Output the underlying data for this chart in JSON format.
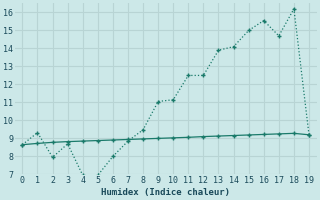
{
  "line1_x": [
    0,
    1,
    2,
    3,
    4,
    5,
    6,
    7,
    8,
    9,
    10,
    11,
    12,
    13,
    14,
    15,
    16,
    17,
    18,
    19
  ],
  "line1_y": [
    8.65,
    9.32,
    7.95,
    8.7,
    6.95,
    6.95,
    8.0,
    8.85,
    9.48,
    11.05,
    11.15,
    12.5,
    12.5,
    13.9,
    14.1,
    15.0,
    15.55,
    14.7,
    16.2,
    9.2
  ],
  "line2_x": [
    0,
    1,
    2,
    3,
    4,
    5,
    6,
    7,
    8,
    9,
    10,
    11,
    12,
    13,
    14,
    15,
    16,
    17,
    18,
    19
  ],
  "line2_y": [
    8.65,
    8.72,
    8.78,
    8.82,
    8.85,
    8.88,
    8.91,
    8.94,
    8.97,
    9.0,
    9.03,
    9.06,
    9.1,
    9.13,
    9.16,
    9.19,
    9.22,
    9.25,
    9.28,
    9.2
  ],
  "line_color": "#1a7a6a",
  "bg_color": "#cce8e8",
  "grid_color": "#b8d4d4",
  "xlabel": "Humidex (Indice chaleur)",
  "ylim": [
    7,
    16.5
  ],
  "xlim": [
    -0.5,
    19.5
  ],
  "yticks": [
    7,
    8,
    9,
    10,
    11,
    12,
    13,
    14,
    15,
    16
  ],
  "xticks": [
    0,
    1,
    2,
    3,
    4,
    5,
    6,
    7,
    8,
    9,
    10,
    11,
    12,
    13,
    14,
    15,
    16,
    17,
    18,
    19
  ]
}
